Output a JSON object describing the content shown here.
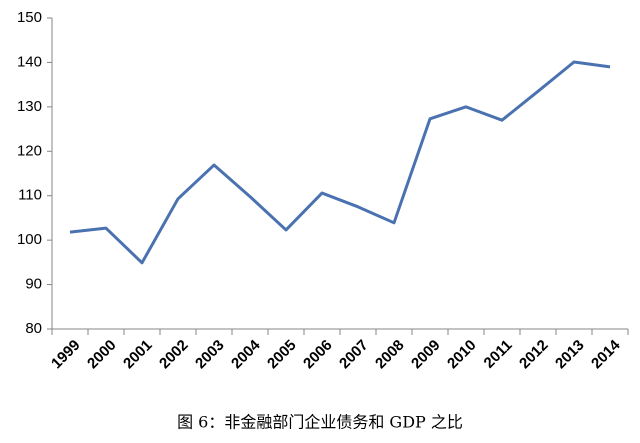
{
  "chart_data": {
    "type": "line",
    "title": "图 6：非金融部门企业债务和 GDP 之比",
    "categories": [
      "1999",
      "2000",
      "2001",
      "2002",
      "2003",
      "2004",
      "2005",
      "2006",
      "2007",
      "2008",
      "2009",
      "2010",
      "2011",
      "2012",
      "2013",
      "2014"
    ],
    "series": [
      {
        "name": "非金融部门企业债务和 GDP 之比",
        "color": "#4a72b0",
        "values": [
          101.8,
          102.7,
          94.9,
          109.3,
          116.9,
          109.8,
          102.3,
          110.6,
          107.5,
          103.9,
          127.3,
          130.0,
          127.0,
          133.5,
          140.1,
          139.0
        ]
      }
    ],
    "ylim": [
      80,
      150
    ],
    "yticks": [
      80,
      90,
      100,
      110,
      120,
      130,
      140,
      150
    ],
    "grid": false
  }
}
